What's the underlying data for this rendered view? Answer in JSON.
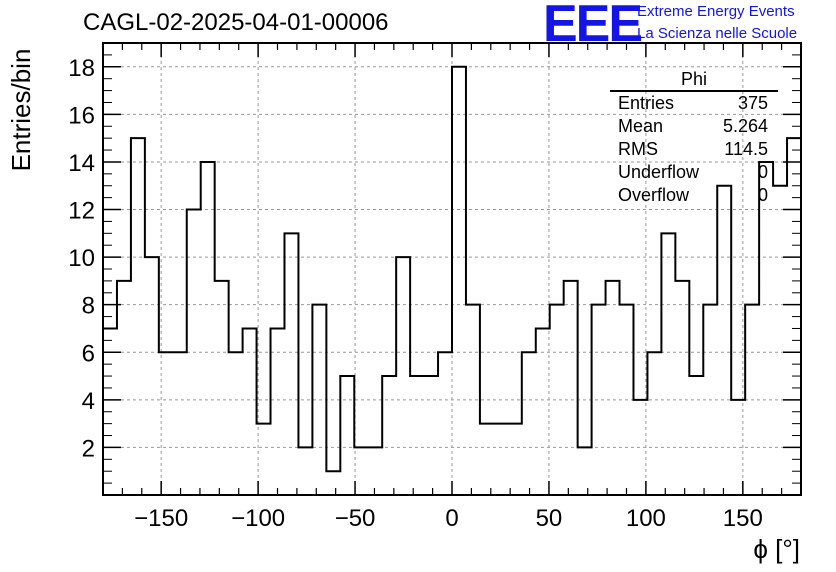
{
  "header": {
    "title": "CAGL-02-2025-04-01-00006",
    "logo": "EEE",
    "logo_line1": "Extreme Energy Events",
    "logo_line2": "La Scienza nelle Scuole"
  },
  "stats_box": {
    "title": "Phi",
    "rows": [
      {
        "key": "Entries",
        "value": "375"
      },
      {
        "key": "Mean",
        "value": "5.264"
      },
      {
        "key": "RMS",
        "value": "114.5"
      },
      {
        "key": "Underflow",
        "value": "0"
      },
      {
        "key": "Overflow",
        "value": "0"
      }
    ]
  },
  "chart_data": {
    "type": "bar",
    "style": "step-histogram",
    "xlabel": "ϕ [°]",
    "ylabel": "Entries/bin",
    "xlim": [
      -180,
      180
    ],
    "ylim": [
      0,
      19
    ],
    "xticks": [
      -150,
      -100,
      -50,
      0,
      50,
      100,
      150
    ],
    "yticks": [
      2,
      4,
      6,
      8,
      10,
      12,
      14,
      16,
      18
    ],
    "grid": true,
    "bin_edges": [
      -180,
      -172.8,
      -165.6,
      -158.4,
      -151.2,
      -144,
      -136.8,
      -129.6,
      -122.4,
      -115.2,
      -108,
      -100.8,
      -93.6,
      -86.4,
      -79.2,
      -72,
      -64.8,
      -57.6,
      -50.4,
      -43.2,
      -36,
      -28.8,
      -21.6,
      -14.4,
      -7.2,
      0,
      7.2,
      14.4,
      21.6,
      28.8,
      36,
      43.2,
      50.4,
      57.6,
      64.8,
      72,
      79.2,
      86.4,
      93.6,
      100.8,
      108,
      115.2,
      122.4,
      129.6,
      136.8,
      144,
      151.2,
      158.4,
      165.6,
      172.8,
      180
    ],
    "values": [
      7,
      9,
      15,
      10,
      6,
      6,
      12,
      14,
      9,
      6,
      7,
      3,
      7,
      11,
      2,
      8,
      1,
      5,
      2,
      2,
      5,
      10,
      5,
      5,
      6,
      18,
      8,
      3,
      3,
      3,
      6,
      7,
      8,
      9,
      2,
      8,
      9,
      8,
      4,
      6,
      11,
      9,
      5,
      8,
      13,
      4,
      8,
      14,
      13,
      15
    ],
    "line_color": "#000000",
    "grid_color": "#999999"
  }
}
